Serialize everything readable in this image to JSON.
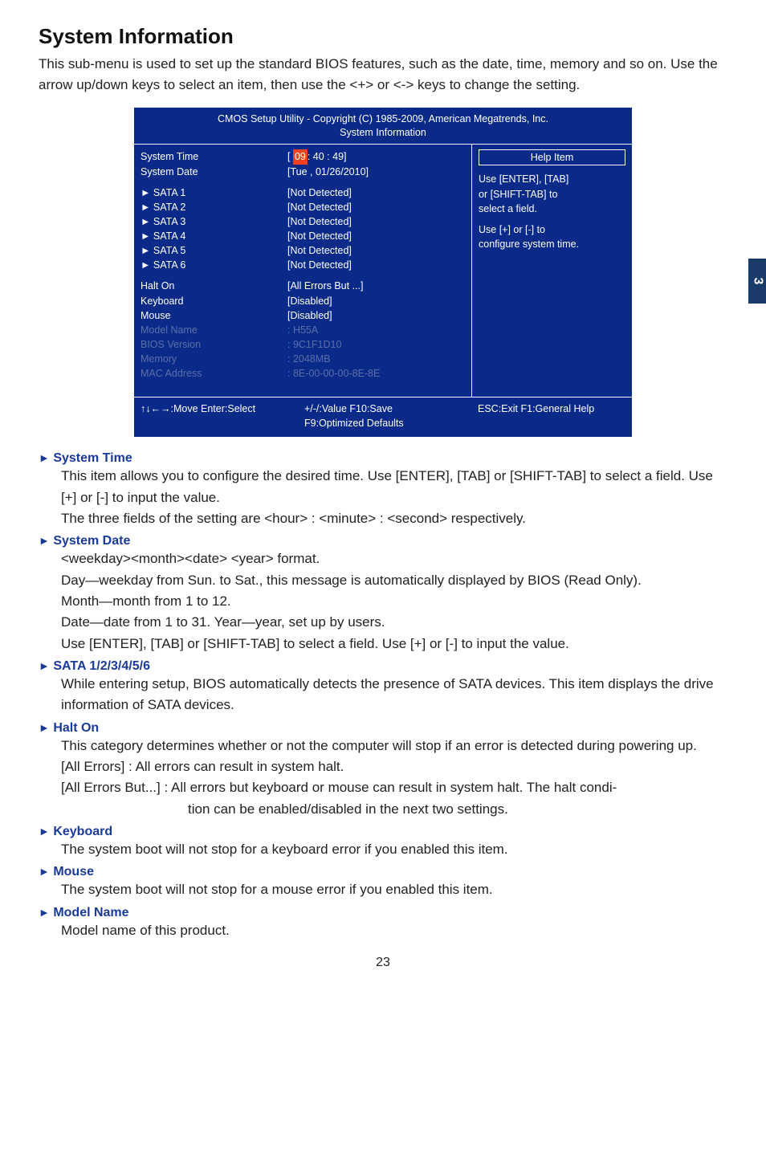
{
  "page": {
    "title": "System Information",
    "intro": "This sub-menu is used to set up the standard BIOS features, such as the date, time, memory and so on. Use the arrow up/down keys to select an item, then use the <+> or <-> keys to change the setting.",
    "side_tab": "3",
    "page_number": "23"
  },
  "bios": {
    "header_line1": "CMOS Setup Utility - Copyright (C) 1985-2009, American Megatrends, Inc.",
    "header_line2": "System Information",
    "left": {
      "system_time": "System Time",
      "system_date": "System Date",
      "sata": [
        "SATA 1",
        "SATA 2",
        "SATA 3",
        "SATA 4",
        "SATA 5",
        "SATA 6"
      ],
      "halt_on": "Halt On",
      "keyboard": "Keyboard",
      "mouse": "Mouse",
      "model_name": "Model Name",
      "bios_version": "BIOS Version",
      "memory": "Memory",
      "mac_address": "MAC Address"
    },
    "mid": {
      "time_pre": "[ ",
      "time_hour": "09",
      "time_rest": ": 40 : 49]",
      "date": "[Tue , 01/26/2010]",
      "sata_vals": [
        "[Not Detected]",
        "[Not Detected]",
        "[Not Detected]",
        "[Not Detected]",
        "[Not Detected]",
        "[Not Detected]"
      ],
      "halt_on": "[All Errors  But ...]",
      "keyboard": "[Disabled]",
      "mouse": "[Disabled]",
      "model_name": ": H55A",
      "bios_version": ": 9C1F1D10",
      "memory": ": 2048MB",
      "mac_address": ": 8E-00-00-00-8E-8E"
    },
    "right": {
      "help_title": "Help Item",
      "l1": "Use [ENTER], [TAB]",
      "l2": "or [SHIFT-TAB] to",
      "l3": "select a field.",
      "l4": "Use [+] or [-] to",
      "l5": "configure system time."
    },
    "footer": {
      "move": "↑↓←→:Move   Enter:Select",
      "value": "+/-/:Value     F10:Save",
      "esc": "ESC:Exit    F1:General Help",
      "defaults": "F9:Optimized Defaults"
    }
  },
  "sections": {
    "system_time": {
      "head": "System Time",
      "p1": "This item allows you to configure the desired time. Use [ENTER], [TAB] or [SHIFT-TAB] to select a field. Use [+] or [-] to input the value.",
      "p2": "The three fields of the setting are <hour> : <minute> : <second> respectively."
    },
    "system_date": {
      "head": "System Date",
      "p1": "<weekday><month><date> <year> format.",
      "p2": "Day—weekday from Sun. to Sat., this message is automatically displayed by BIOS (Read Only).",
      "p3": "Month—month from 1 to 12.",
      "p4": "Date—date from 1 to 31. Year—year, set up by users.",
      "p5": "Use [ENTER], [TAB] or [SHIFT-TAB] to select a field. Use [+] or [-] to input the value."
    },
    "sata": {
      "head": "SATA 1/2/3/4/5/6",
      "p1": "While entering setup, BIOS automatically detects the presence of SATA devices. This item displays the drive information of SATA devices."
    },
    "halt_on": {
      "head": "Halt On",
      "p1": "This category determines whether or not the computer will stop if an error is detected during powering up.",
      "p2": "[All Errors] : All errors can result in system halt.",
      "p3": "[All Errors But...] : All errors but keyboard or mouse can result in system halt. The halt condi-",
      "p4": "tion can be enabled/disabled in the next two settings."
    },
    "keyboard": {
      "head": "Keyboard",
      "p1": "The system boot will not stop for a keyboard error if you enabled this item."
    },
    "mouse": {
      "head": "Mouse",
      "p1": "The system boot will not stop for a mouse error if you enabled this item."
    },
    "model_name": {
      "head": "Model Name",
      "p1": "Model name of this product."
    }
  },
  "glyphs": {
    "triangle": "►"
  },
  "colors": {
    "bios_bg": "#0a2a8a",
    "bios_text": "#ffffff",
    "bios_muted": "#5a6fa8",
    "highlight": "#f04020",
    "heading_blue": "#1a3a9a",
    "side_tab": "#1a3a6a"
  }
}
